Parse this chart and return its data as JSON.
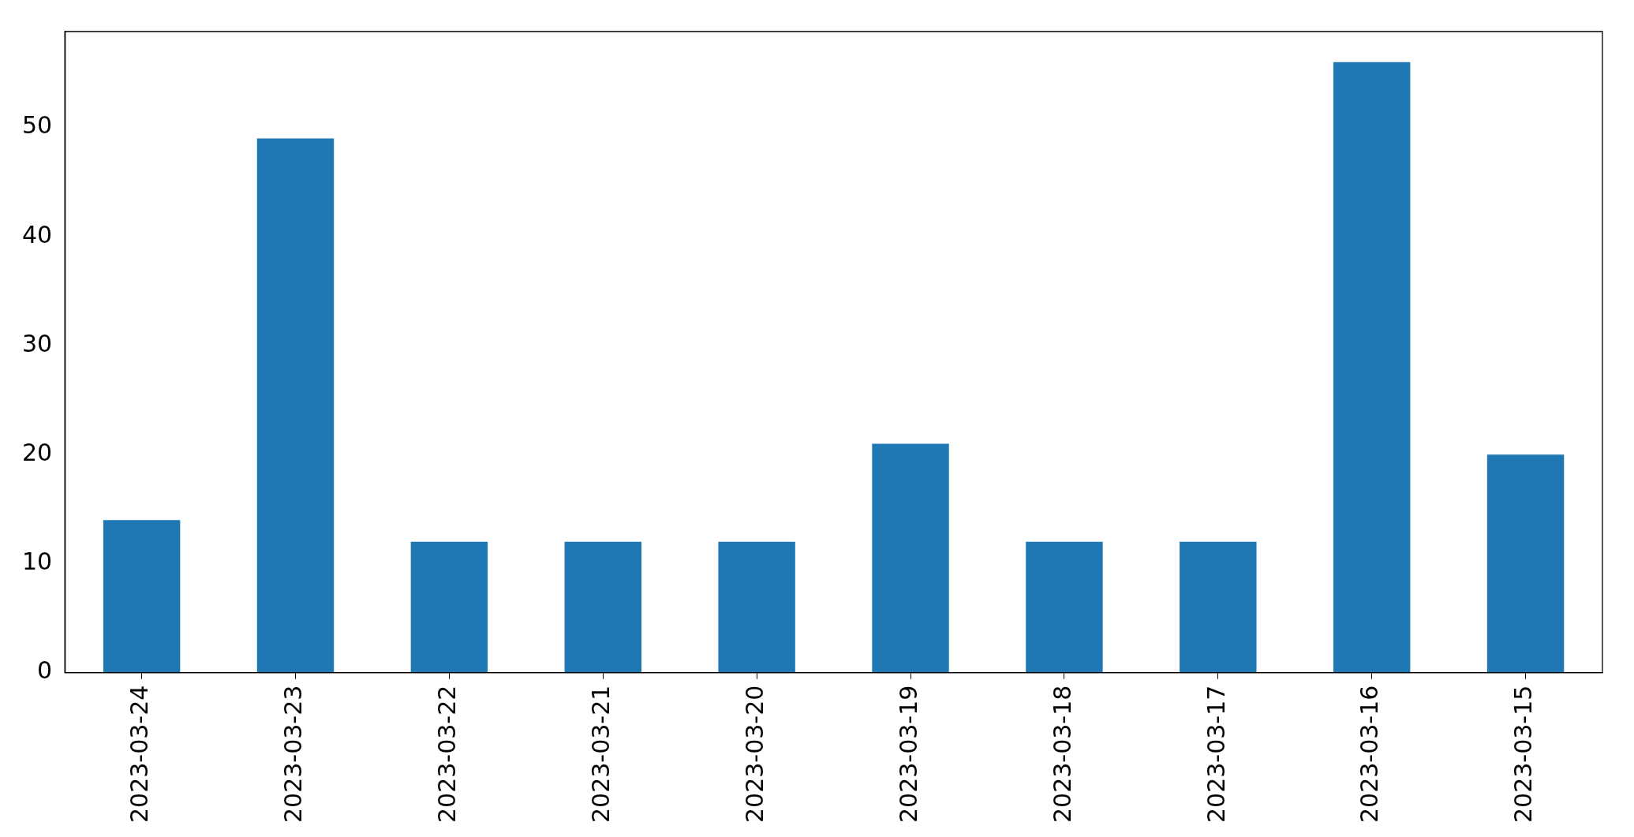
{
  "chart_data": {
    "type": "bar",
    "categories": [
      "2023-03-24",
      "2023-03-23",
      "2023-03-22",
      "2023-03-21",
      "2023-03-20",
      "2023-03-19",
      "2023-03-18",
      "2023-03-17",
      "2023-03-16",
      "2023-03-15"
    ],
    "values": [
      14,
      49,
      12,
      12,
      12,
      21,
      12,
      12,
      56,
      20
    ],
    "color": "#1f77b4",
    "ylim": [
      0,
      58.8
    ],
    "yticks": [
      0,
      10,
      20,
      30,
      40,
      50
    ],
    "grid": false,
    "legend": false
  }
}
